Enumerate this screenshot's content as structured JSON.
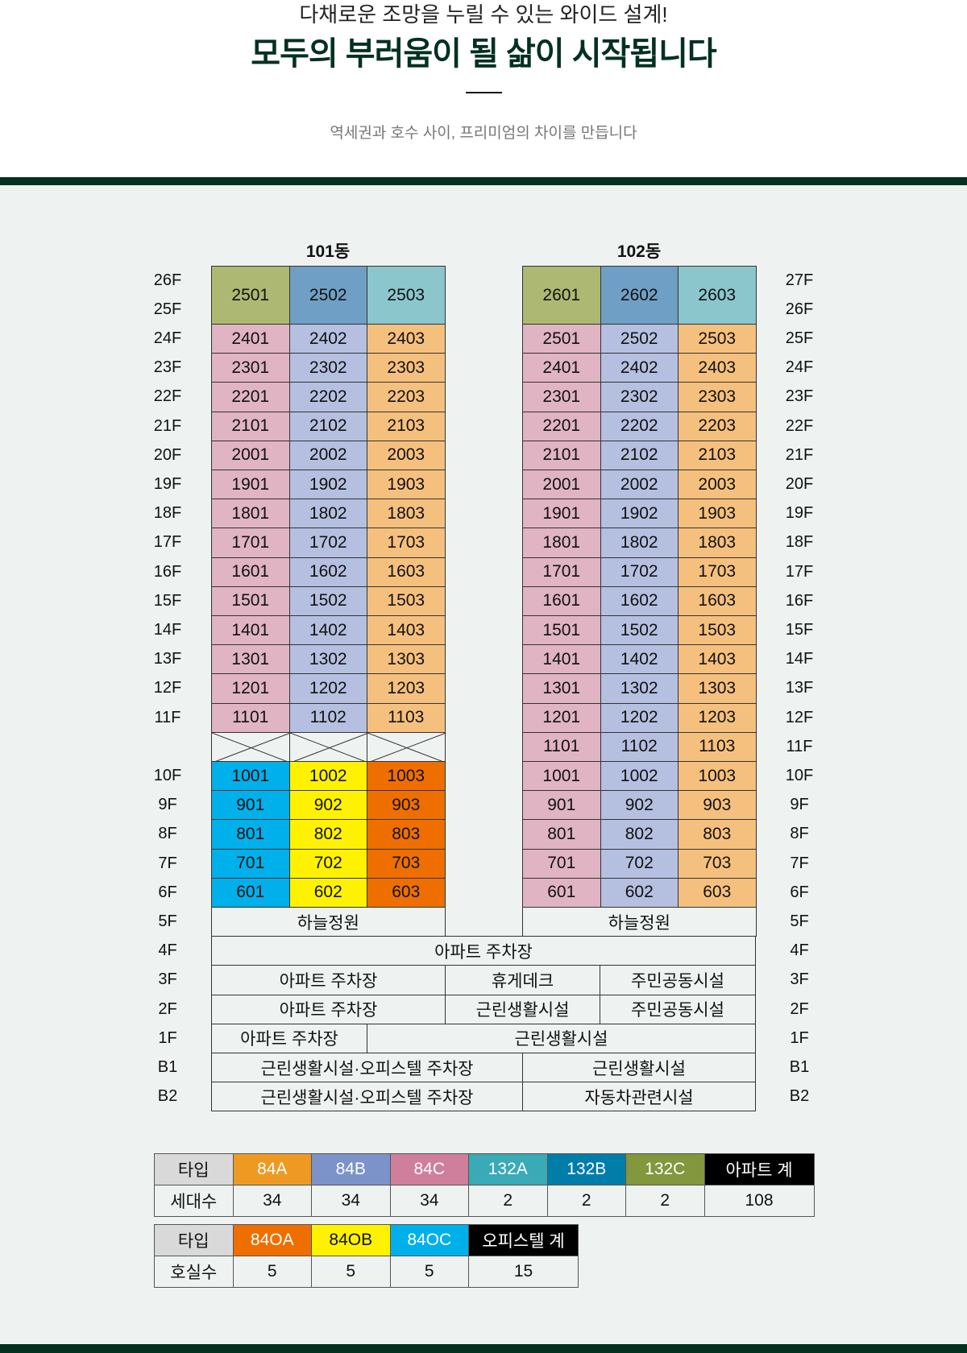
{
  "header": {
    "subtitle": "다채로운 조망을 누릴 수 있는 와이드 설계!",
    "title": "모두의 부러움이 될 삶이 시작됩니다",
    "tagline": "역세권과 호수 사이, 프리미엄의 차이를 만듭니다"
  },
  "colors": {
    "dark_green": "#03301f",
    "background": "#eef3f1",
    "top_a": "#adb873",
    "top_b": "#6f9fc4",
    "top_c": "#8bc6cc",
    "apt_a": "#e0b4c3",
    "apt_b": "#b5c0e0",
    "apt_c": "#f5c07e",
    "off_a": "#00b0ea",
    "off_b": "#fff200",
    "off_c": "#ee6f00"
  },
  "buildings": [
    {
      "name": "101동",
      "top_floor_labels": [
        "26F",
        "25F"
      ],
      "top_units": [
        "2501",
        "2502",
        "2503"
      ],
      "floor_labels": [
        "24F",
        "23F",
        "22F",
        "21F",
        "20F",
        "19F",
        "18F",
        "17F",
        "16F",
        "15F",
        "14F",
        "13F",
        "12F",
        "11F",
        "",
        "10F",
        "9F",
        "8F",
        "7F",
        "6F",
        "5F",
        "4F",
        "3F",
        "2F",
        "1F",
        "B1",
        "B2"
      ],
      "unit_rows": [
        [
          "2401",
          "2402",
          "2403"
        ],
        [
          "2301",
          "2302",
          "2303"
        ],
        [
          "2201",
          "2202",
          "2203"
        ],
        [
          "2101",
          "2102",
          "2103"
        ],
        [
          "2001",
          "2002",
          "2003"
        ],
        [
          "1901",
          "1902",
          "1903"
        ],
        [
          "1801",
          "1802",
          "1803"
        ],
        [
          "1701",
          "1702",
          "1703"
        ],
        [
          "1601",
          "1602",
          "1603"
        ],
        [
          "1501",
          "1502",
          "1503"
        ],
        [
          "1401",
          "1402",
          "1403"
        ],
        [
          "1301",
          "1302",
          "1303"
        ],
        [
          "1201",
          "1202",
          "1203"
        ],
        [
          "1101",
          "1102",
          "1103"
        ],
        null,
        [
          "1001",
          "1002",
          "1003"
        ],
        [
          "901",
          "902",
          "903"
        ],
        [
          "801",
          "802",
          "803"
        ],
        [
          "701",
          "702",
          "703"
        ],
        [
          "601",
          "602",
          "603"
        ]
      ],
      "officetel_from_row": 15,
      "sky_garden": "하늘정원"
    },
    {
      "name": "102동",
      "top_floor_labels": [
        "27F",
        "26F"
      ],
      "top_units": [
        "2601",
        "2602",
        "2603"
      ],
      "floor_labels": [
        "25F",
        "24F",
        "23F",
        "22F",
        "21F",
        "20F",
        "19F",
        "18F",
        "17F",
        "16F",
        "15F",
        "14F",
        "13F",
        "12F",
        "11F",
        "10F",
        "9F",
        "8F",
        "7F",
        "6F",
        "5F",
        "4F",
        "3F",
        "2F",
        "1F",
        "B1",
        "B2"
      ],
      "unit_rows": [
        [
          "2501",
          "2502",
          "2503"
        ],
        [
          "2401",
          "2402",
          "2403"
        ],
        [
          "2301",
          "2302",
          "2303"
        ],
        [
          "2201",
          "2202",
          "2203"
        ],
        [
          "2101",
          "2102",
          "2103"
        ],
        [
          "2001",
          "2002",
          "2003"
        ],
        [
          "1901",
          "1902",
          "1903"
        ],
        [
          "1801",
          "1802",
          "1803"
        ],
        [
          "1701",
          "1702",
          "1703"
        ],
        [
          "1601",
          "1602",
          "1603"
        ],
        [
          "1501",
          "1502",
          "1503"
        ],
        [
          "1401",
          "1402",
          "1403"
        ],
        [
          "1301",
          "1302",
          "1303"
        ],
        [
          "1201",
          "1202",
          "1203"
        ],
        [
          "1101",
          "1102",
          "1103"
        ],
        [
          "1001",
          "1002",
          "1003"
        ],
        [
          "901",
          "902",
          "903"
        ],
        [
          "801",
          "802",
          "803"
        ],
        [
          "701",
          "702",
          "703"
        ],
        [
          "601",
          "602",
          "603"
        ]
      ],
      "officetel_from_row": null,
      "sky_garden": "하늘정원"
    }
  ],
  "podium": {
    "4F": [
      "아파트 주차장"
    ],
    "3F": [
      "아파트 주차장",
      "휴게데크",
      "주민공동시설"
    ],
    "2F": [
      "아파트 주차장",
      "근린생활시설",
      "주민공동시설"
    ],
    "1F": [
      "아파트 주차장",
      "근린생활시설"
    ],
    "B1": [
      "근린생활시설·오피스텔 주차장",
      "근린생활시설"
    ],
    "B2": [
      "근린생활시설·오피스텔 주차장",
      "자동차관련시설"
    ]
  },
  "apartment_table": {
    "row_labels": [
      "타입",
      "세대수"
    ],
    "types": [
      {
        "label": "84A",
        "count": "34",
        "color": "#ee9a22"
      },
      {
        "label": "84B",
        "count": "34",
        "color": "#7b93c9"
      },
      {
        "label": "84C",
        "count": "34",
        "color": "#cf7f9b"
      },
      {
        "label": "132A",
        "count": "2",
        "color": "#39aab6"
      },
      {
        "label": "132B",
        "count": "2",
        "color": "#007ea9"
      },
      {
        "label": "132C",
        "count": "2",
        "color": "#82973e"
      }
    ],
    "total": {
      "label": "아파트 계",
      "count": "108",
      "color": "#000000"
    }
  },
  "officetel_table": {
    "row_labels": [
      "타입",
      "호실수"
    ],
    "types": [
      {
        "label": "84OA",
        "count": "5",
        "color": "#ee6f00"
      },
      {
        "label": "84OB",
        "count": "5",
        "color": "#fff200",
        "text": "#111111"
      },
      {
        "label": "84OC",
        "count": "5",
        "color": "#00b0ea"
      }
    ],
    "total": {
      "label": "오피스텔 계",
      "count": "15",
      "color": "#000000"
    }
  }
}
